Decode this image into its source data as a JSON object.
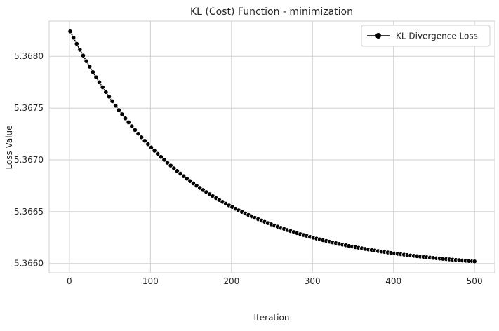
{
  "chart_data": {
    "type": "line",
    "title": "KL (Cost) Function - minimization",
    "xlabel": "Iteration",
    "ylabel": "Loss Value",
    "xlim": [
      -25,
      525
    ],
    "ylim": [
      5.36591,
      5.36834
    ],
    "xticks": [
      0,
      100,
      200,
      300,
      400,
      500
    ],
    "yticks": [
      5.366,
      5.3665,
      5.367,
      5.3675,
      5.368
    ],
    "ytick_labels": [
      "5.3660",
      "5.3665",
      "5.3670",
      "5.3675",
      "5.3680"
    ],
    "grid": true,
    "legend_position": "top-right",
    "series": [
      {
        "name": "KL Divergence Loss",
        "color": "#000000",
        "marker": "circle",
        "x_start": 1,
        "x_end": 500,
        "x_step": 4,
        "y_start": 5.36824,
        "y_end": 5.36602,
        "decay_constant": 150
      }
    ]
  }
}
